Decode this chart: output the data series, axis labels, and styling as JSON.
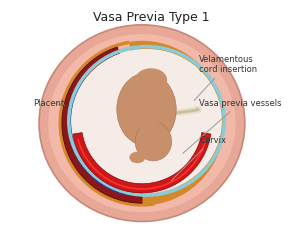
{
  "title": "Vasa Previa Type 1",
  "title_fontsize": 9,
  "background_color": "#ffffff",
  "labels": {
    "placenta": "Placenta",
    "velamentous": "Velamentous\ncord insertion",
    "vasa_previa": "Vasa previa vessels",
    "cervix": "Cervix"
  },
  "colors": {
    "uterus_outer": "#e8a898",
    "uterus_inner": "#f0bfb0",
    "bg_fill": "#f5c8b8",
    "placenta_dark": "#8b1818",
    "placenta_mid": "#aa2828",
    "placenta_orange": "#d4882a",
    "vessel_blue": "#1a3acc",
    "vessel_red": "#cc1818",
    "amnio_blue": "#88ccd8",
    "amnio_fill": "#f5e8e0",
    "cord": "#e8e0c8",
    "cord_shadow": "#c8c0a0",
    "fetus": "#c8906a",
    "fetus_dark": "#a87050",
    "label_color": "#333333",
    "line_color": "#999999"
  },
  "figsize": [
    3.0,
    2.3
  ],
  "dpi": 100
}
